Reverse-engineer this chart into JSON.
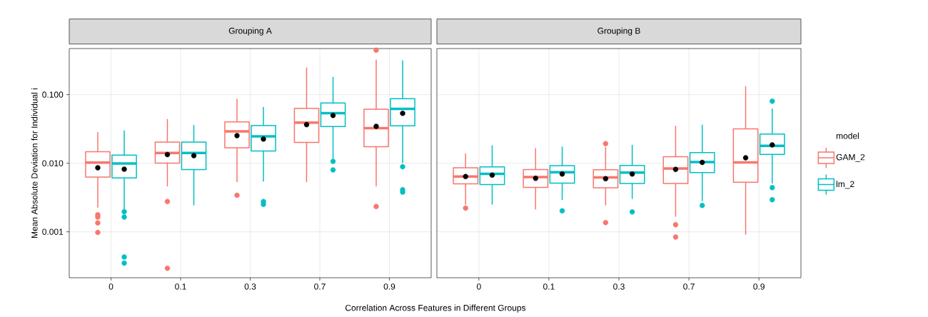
{
  "chart_data": [
    {
      "type": "box",
      "title": "Grouping A",
      "xlabel": "Correlation Across Features in Different Groups",
      "ylabel": "Mean Absolute Deviation for Individual i",
      "categories": [
        "0",
        "0.1",
        "0.3",
        "0.7",
        "0.9"
      ],
      "log": true,
      "grid": true,
      "ylim": [
        0.000214,
        0.47
      ],
      "yticks": [
        {
          "value": 0.001,
          "label": "0.001"
        },
        {
          "value": 0.01,
          "label": "0.010"
        },
        {
          "value": 0.1,
          "label": "0.100"
        }
      ],
      "series": [
        {
          "color": "#f8766d",
          "boxes": [
            {
              "low": 0.00226,
              "q1": 0.0063,
              "median": 0.0102,
              "q3": 0.0147,
              "high": 0.0285,
              "mean": 0.0086,
              "outliers": [
                0.00177,
                0.00164,
                0.00135,
                0.00098
              ]
            },
            {
              "low": 0.00459,
              "q1": 0.01,
              "median": 0.0141,
              "q3": 0.0204,
              "high": 0.0441,
              "mean": 0.0134,
              "outliers": [
                0.00276,
                0.000294
              ]
            },
            {
              "low": 0.0053,
              "q1": 0.0168,
              "median": 0.0292,
              "q3": 0.0401,
              "high": 0.0867,
              "mean": 0.0253,
              "outliers": [
                0.00342
              ]
            },
            {
              "low": 0.0053,
              "q1": 0.0201,
              "median": 0.0392,
              "q3": 0.0631,
              "high": 0.249,
              "mean": 0.0365
            },
            {
              "low": 0.00459,
              "q1": 0.0174,
              "median": 0.0324,
              "q3": 0.0611,
              "high": 0.324,
              "mean": 0.0345,
              "outliers": [
                0.445,
                0.00234
              ]
            }
          ]
        },
        {
          "color": "#00bfc4",
          "boxes": [
            {
              "low": 0.00204,
              "q1": 0.0061,
              "median": 0.0099,
              "q3": 0.0131,
              "high": 0.03,
              "mean": 0.0082,
              "outliers": [
                0.00196,
                0.00164,
                0.00043,
                0.00035
              ]
            },
            {
              "low": 0.00243,
              "q1": 0.0081,
              "median": 0.0141,
              "q3": 0.0203,
              "high": 0.0362,
              "mean": 0.0129
            },
            {
              "low": 0.0054,
              "q1": 0.0151,
              "median": 0.0247,
              "q3": 0.0356,
              "high": 0.0662,
              "mean": 0.0225,
              "outliers": [
                0.00276,
                0.00251
              ]
            },
            {
              "low": 0.0117,
              "q1": 0.0342,
              "median": 0.0538,
              "q3": 0.0757,
              "high": 0.1815,
              "mean": 0.0498,
              "outliers": [
                0.01066,
                0.008
              ]
            },
            {
              "low": 0.01,
              "q1": 0.0351,
              "median": 0.0621,
              "q3": 0.0873,
              "high": 0.316,
              "mean": 0.0534,
              "outliers": [
                0.00887,
                0.00411,
                0.00379
              ]
            }
          ]
        }
      ]
    },
    {
      "type": "box",
      "title": "Grouping B",
      "legend_title": "model",
      "legend": "right",
      "categories": [
        "0",
        "0.1",
        "0.3",
        "0.7",
        "0.9"
      ],
      "log": true,
      "grid": true,
      "tick_labels": "x",
      "ylim": [
        0.000214,
        0.47
      ],
      "yticks": [
        {
          "value": 0.001,
          "label": null
        },
        {
          "value": 0.01,
          "label": null
        },
        {
          "value": 0.1,
          "label": null
        }
      ],
      "series": [
        {
          "name": "GAM_2",
          "color": "#f8766d",
          "boxes": [
            {
              "low": 0.00249,
              "q1": 0.005,
              "median": 0.0064,
              "q3": 0.0086,
              "high": 0.01396,
              "mean": 0.0064,
              "outliers": [
                0.00222
              ]
            },
            {
              "low": 0.00212,
              "q1": 0.00445,
              "median": 0.0063,
              "q3": 0.00807,
              "high": 0.01656,
              "mean": 0.00604
            },
            {
              "low": 0.00243,
              "q1": 0.00438,
              "median": 0.0062,
              "q3": 0.00802,
              "high": 0.0172,
              "mean": 0.00594,
              "outliers": [
                0.0193,
                0.00136
              ]
            },
            {
              "low": 0.00166,
              "q1": 0.00506,
              "median": 0.0084,
              "q3": 0.01248,
              "high": 0.0351,
              "mean": 0.00815,
              "outliers": [
                0.00127,
                0.00084
              ]
            },
            {
              "low": 0.00091,
              "q1": 0.00527,
              "median": 0.0103,
              "q3": 0.0316,
              "high": 0.1327,
              "mean": 0.012
            }
          ]
        },
        {
          "name": "lm_2",
          "color": "#00bfc4",
          "boxes": [
            {
              "low": 0.00249,
              "q1": 0.0049,
              "median": 0.00699,
              "q3": 0.00883,
              "high": 0.01824,
              "mean": 0.00671
            },
            {
              "low": 0.00292,
              "q1": 0.00514,
              "median": 0.0074,
              "q3": 0.0092,
              "high": 0.0175,
              "mean": 0.00698,
              "outliers": [
                0.00202
              ]
            },
            {
              "low": 0.00302,
              "q1": 0.00506,
              "median": 0.00728,
              "q3": 0.00927,
              "high": 0.0185,
              "mean": 0.00698,
              "outliers": [
                0.00195
              ]
            },
            {
              "low": 0.0028,
              "q1": 0.00728,
              "median": 0.0104,
              "q3": 0.0143,
              "high": 0.0365,
              "mean": 0.0103,
              "outliers": [
                0.00243
              ]
            },
            {
              "low": 0.00506,
              "q1": 0.01343,
              "median": 0.01795,
              "q3": 0.0267,
              "high": 0.0627,
              "mean": 0.0185,
              "outliers": [
                0.0804,
                0.0044,
                0.00294
              ]
            }
          ]
        }
      ]
    }
  ]
}
